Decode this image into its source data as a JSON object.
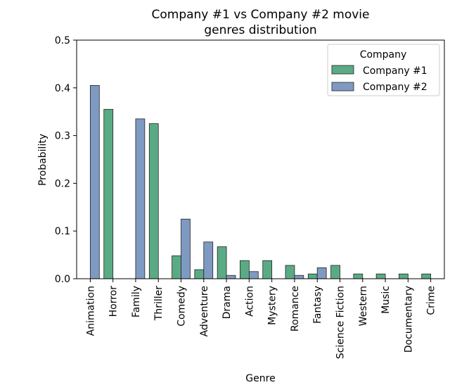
{
  "chart_data": {
    "type": "bar",
    "title_lines": [
      "Company #1 vs Company #2 movie",
      "genres distribution"
    ],
    "xlabel": "Genre",
    "ylabel": "Probability",
    "ylim": [
      0,
      0.5
    ],
    "yticks": [
      0.0,
      0.1,
      0.2,
      0.3,
      0.4,
      0.5
    ],
    "ytick_labels": [
      "0.0",
      "0.1",
      "0.2",
      "0.3",
      "0.4",
      "0.5"
    ],
    "grid": false,
    "categories": [
      "Animation",
      "Horror",
      "Family",
      "Thriller",
      "Comedy",
      "Adventure",
      "Drama",
      "Action",
      "Mystery",
      "Romance",
      "Fantasy",
      "Science Fiction",
      "Western",
      "Music",
      "Documentary",
      "Crime"
    ],
    "legend": {
      "title": "Company",
      "placement": "top-right"
    },
    "series": [
      {
        "name": "Company #1",
        "color": "#5aab85",
        "values": [
          0,
          0.355,
          0,
          0.325,
          0.048,
          0.019,
          0.067,
          0.038,
          0.038,
          0.028,
          0.01,
          0.028,
          0.01,
          0.01,
          0.01,
          0.01
        ]
      },
      {
        "name": "Company #2",
        "color": "#7f9ac2",
        "values": [
          0.405,
          0,
          0.335,
          0,
          0.125,
          0.077,
          0.007,
          0.015,
          0,
          0.007,
          0.023,
          0,
          0,
          0,
          0,
          0
        ]
      }
    ]
  }
}
